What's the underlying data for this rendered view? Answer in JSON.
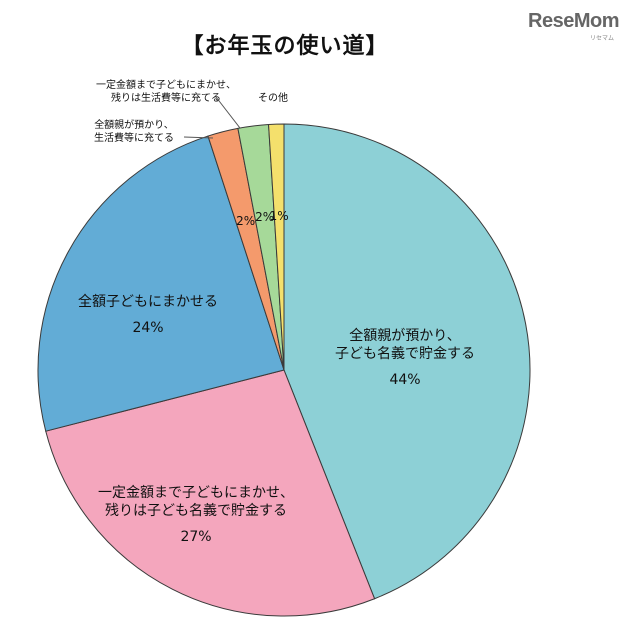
{
  "title": "【お年玉の使い道】",
  "logo": {
    "text": "ReseMom",
    "sub": "リセマム"
  },
  "chart_data": {
    "type": "pie",
    "title": "【お年玉の使い道】",
    "slices": [
      {
        "label_lines": [
          "全額親が預かり、",
          "子ども名義で貯金する"
        ],
        "value": 44,
        "value_label": "44%",
        "color": "#8dd0d6",
        "label_inside": true
      },
      {
        "label_lines": [
          "一定金額まで子どもにまかせ、",
          "残りは子ども名義で貯金する"
        ],
        "value": 27,
        "value_label": "27%",
        "color": "#f4a6bd",
        "label_inside": true
      },
      {
        "label_lines": [
          "全額子どもにまかせる"
        ],
        "value": 24,
        "value_label": "24%",
        "color": "#62acd6",
        "label_inside": true
      },
      {
        "label_lines": [
          "全額親が預かり、",
          "生活費等に充てる"
        ],
        "value": 2,
        "value_label": "2%",
        "color": "#f49a6c",
        "label_inside": false
      },
      {
        "label_lines": [
          "一定金額まで子どもにまかせ、",
          "残りは生活費等に充てる"
        ],
        "value": 2,
        "value_label": "2%",
        "color": "#a6d999",
        "label_inside": false
      },
      {
        "label_lines": [
          "その他"
        ],
        "value": 1,
        "value_label": "1%",
        "color": "#f4e06c",
        "label_inside": false
      }
    ]
  }
}
